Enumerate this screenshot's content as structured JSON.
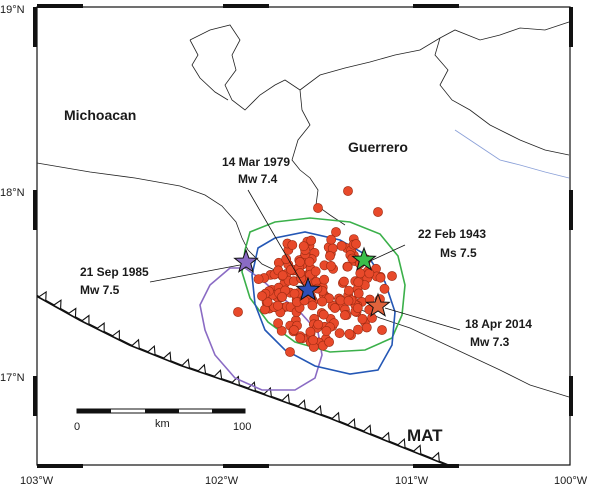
{
  "axes": {
    "lat_top": "19°N",
    "lat_mid": "18°N",
    "lat_bottom": "17°N",
    "lon_left": "103°W",
    "lon_mid1": "102°W",
    "lon_mid2": "101°W",
    "lon_right": "100°W"
  },
  "regions": {
    "michoacan": "Michoacan",
    "guerrero": "Guerrero"
  },
  "trench_label": "MAT",
  "earthquakes": [
    {
      "date": "14 Mar 1979",
      "mag": "Mw 7.4",
      "color": "#2e4fb8"
    },
    {
      "date": "21 Sep 1985",
      "mag": "Mw 7.5",
      "color": "#8a6bc4"
    },
    {
      "date": "22 Feb 1943",
      "mag": "Ms 7.5",
      "color": "#3bbf4a"
    },
    {
      "date": "18 Apr 2014",
      "mag": "Mw 7.3",
      "color": "#e0633c"
    }
  ],
  "scale_bar": {
    "start": "0",
    "unit": "km",
    "end": "100"
  },
  "colors": {
    "aftershock": "#e8492a",
    "aftershock_edge": "#9a2a12",
    "contour_1979": "#2457b5",
    "contour_1985": "#8a6bc4",
    "contour_1943": "#3bb04a",
    "river": "#8aa0d8"
  }
}
